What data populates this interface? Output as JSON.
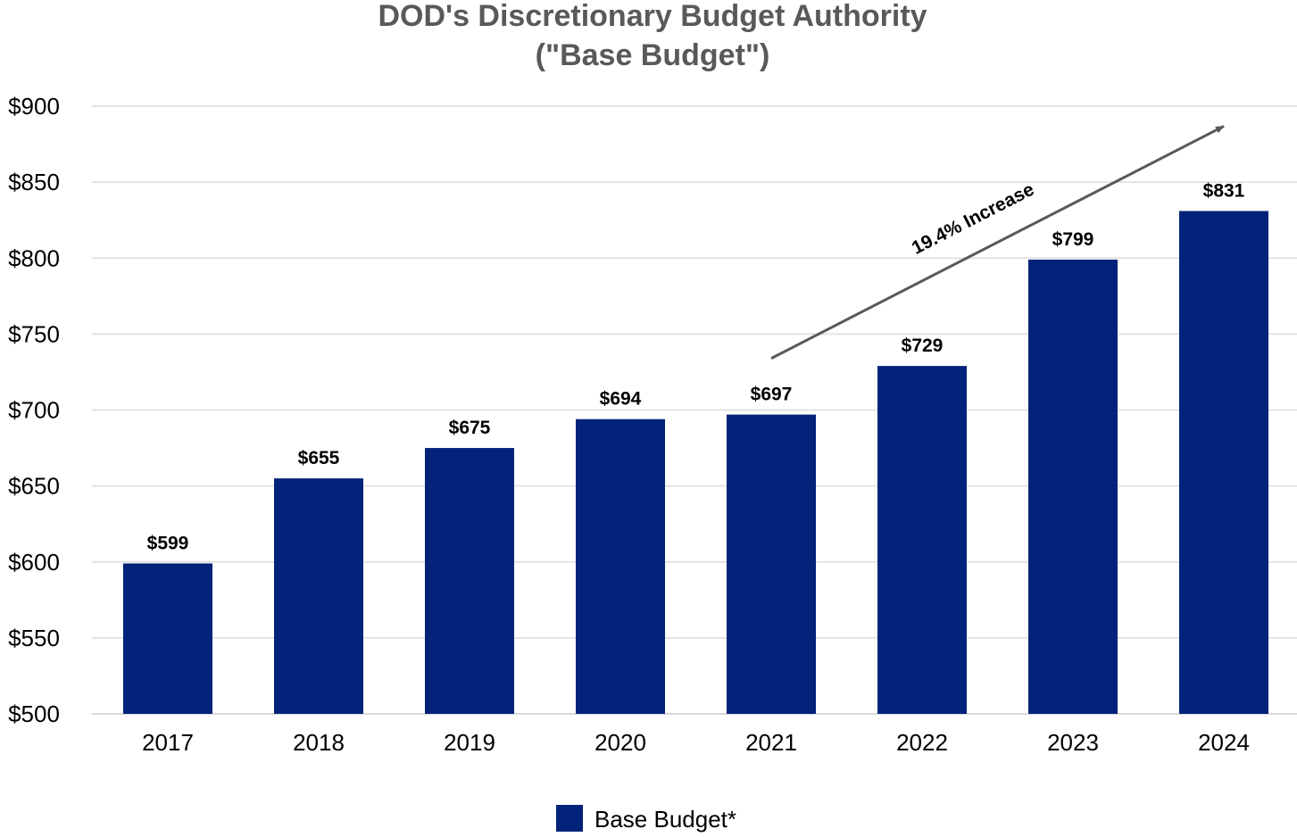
{
  "chart_data": {
    "type": "bar",
    "title_lines": [
      "DOD's Discretionary Budget Authority",
      "(\"Base Budget\")"
    ],
    "categories": [
      "2017",
      "2018",
      "2019",
      "2020",
      "2021",
      "2022",
      "2023",
      "2024"
    ],
    "series": [
      {
        "name": "Base Budget*",
        "values": [
          599,
          655,
          675,
          694,
          697,
          729,
          799,
          831
        ],
        "color": "#03237a"
      }
    ],
    "data_labels": [
      "$599",
      "$655",
      "$675",
      "$694",
      "$697",
      "$729",
      "$799",
      "$831"
    ],
    "ylim": [
      500,
      900
    ],
    "yticks": [
      500,
      550,
      600,
      650,
      700,
      750,
      800,
      850,
      900
    ],
    "ytick_labels": [
      "$500",
      "$550",
      "$600",
      "$650",
      "$700",
      "$750",
      "$800",
      "$850",
      "$900"
    ],
    "grid": true,
    "legend_position": "bottom",
    "annotation": {
      "text": "19.4% Increase",
      "from_category": "2021",
      "to_category": "2024"
    },
    "colors": {
      "bar": "#03237a",
      "title": "#595959",
      "grid": "#e3e3e3",
      "arrow": "#595959"
    }
  }
}
